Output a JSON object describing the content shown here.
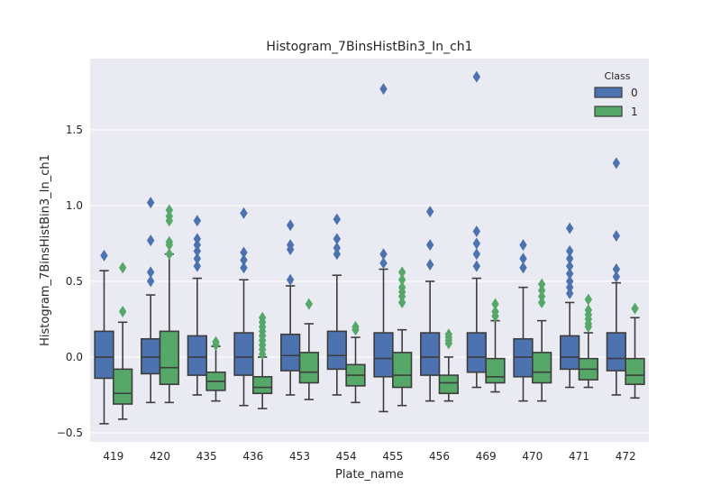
{
  "chart_data": {
    "type": "boxplot",
    "title": "Histogram_7BinsHistBin3_In_ch1",
    "xlabel": "Plate_name",
    "ylabel": "Histogram_7BinsHistBin3_In_ch1",
    "ylim": [
      -0.56,
      1.97
    ],
    "yticks": [
      -0.5,
      0.0,
      0.5,
      1.0,
      1.5
    ],
    "ytick_labels": [
      "−0.5",
      "0.0",
      "0.5",
      "1.0",
      "1.5"
    ],
    "grid": true,
    "legend": {
      "title": "Class",
      "position": "top-right",
      "entries": [
        "0",
        "1"
      ]
    },
    "colors": {
      "0": "#4c72b0",
      "1": "#55a868",
      "background": "#eaeaf2",
      "grid": "#ffffff",
      "line": "#3d3d3d"
    },
    "categories": [
      "419",
      "420",
      "435",
      "436",
      "453",
      "454",
      "455",
      "456",
      "469",
      "470",
      "471",
      "472"
    ],
    "series": [
      {
        "name": "0",
        "boxes": [
          {
            "whislo": -0.44,
            "q1": -0.14,
            "med": 0.0,
            "q3": 0.17,
            "whishi": 0.57,
            "fliers": [
              0.67
            ]
          },
          {
            "whislo": -0.3,
            "q1": -0.11,
            "med": 0.0,
            "q3": 0.12,
            "whishi": 0.41,
            "fliers": [
              0.5,
              0.56,
              0.77,
              1.02
            ]
          },
          {
            "whislo": -0.25,
            "q1": -0.12,
            "med": 0.0,
            "q3": 0.14,
            "whishi": 0.52,
            "fliers": [
              0.6,
              0.65,
              0.7,
              0.74,
              0.78,
              0.9
            ]
          },
          {
            "whislo": -0.32,
            "q1": -0.12,
            "med": 0.0,
            "q3": 0.16,
            "whishi": 0.51,
            "fliers": [
              0.59,
              0.64,
              0.69,
              0.95
            ]
          },
          {
            "whislo": -0.25,
            "q1": -0.09,
            "med": 0.01,
            "q3": 0.15,
            "whishi": 0.47,
            "fliers": [
              0.51,
              0.71,
              0.74,
              0.87
            ]
          },
          {
            "whislo": -0.25,
            "q1": -0.08,
            "med": 0.01,
            "q3": 0.17,
            "whishi": 0.54,
            "fliers": [
              0.68,
              0.72,
              0.78,
              0.91
            ]
          },
          {
            "whislo": -0.36,
            "q1": -0.13,
            "med": -0.01,
            "q3": 0.16,
            "whishi": 0.58,
            "fliers": [
              0.62,
              0.68,
              1.77
            ]
          },
          {
            "whislo": -0.29,
            "q1": -0.12,
            "med": 0.0,
            "q3": 0.16,
            "whishi": 0.5,
            "fliers": [
              0.61,
              0.74,
              0.96
            ]
          },
          {
            "whislo": -0.2,
            "q1": -0.1,
            "med": 0.0,
            "q3": 0.16,
            "whishi": 0.52,
            "fliers": [
              0.6,
              0.68,
              0.75,
              0.83,
              1.85
            ]
          },
          {
            "whislo": -0.29,
            "q1": -0.13,
            "med": 0.0,
            "q3": 0.12,
            "whishi": 0.46,
            "fliers": [
              0.59,
              0.65,
              0.74
            ]
          },
          {
            "whislo": -0.2,
            "q1": -0.08,
            "med": 0.0,
            "q3": 0.14,
            "whishi": 0.36,
            "fliers": [
              0.42,
              0.46,
              0.5,
              0.55,
              0.6,
              0.65,
              0.7,
              0.85
            ]
          },
          {
            "whislo": -0.25,
            "q1": -0.09,
            "med": -0.01,
            "q3": 0.16,
            "whishi": 0.49,
            "fliers": [
              0.53,
              0.58,
              0.8,
              1.28
            ]
          }
        ]
      },
      {
        "name": "1",
        "boxes": [
          {
            "whislo": -0.41,
            "q1": -0.31,
            "med": -0.24,
            "q3": -0.08,
            "whishi": 0.23,
            "fliers": [
              0.3,
              0.59
            ]
          },
          {
            "whislo": -0.3,
            "q1": -0.18,
            "med": -0.07,
            "q3": 0.17,
            "whishi": 0.68,
            "fliers": [
              0.68,
              0.74,
              0.76,
              0.9,
              0.93,
              0.97
            ]
          },
          {
            "whislo": -0.29,
            "q1": -0.22,
            "med": -0.16,
            "q3": -0.1,
            "whishi": 0.07,
            "fliers": [
              0.08,
              0.1
            ]
          },
          {
            "whislo": -0.34,
            "q1": -0.24,
            "med": -0.2,
            "q3": -0.13,
            "whishi": 0.0,
            "fliers": [
              0.02,
              0.05,
              0.08,
              0.11,
              0.14,
              0.17,
              0.2,
              0.23,
              0.26
            ]
          },
          {
            "whislo": -0.28,
            "q1": -0.17,
            "med": -0.1,
            "q3": 0.03,
            "whishi": 0.22,
            "fliers": [
              0.35
            ]
          },
          {
            "whislo": -0.3,
            "q1": -0.19,
            "med": -0.12,
            "q3": -0.05,
            "whishi": 0.13,
            "fliers": [
              0.18,
              0.2
            ]
          },
          {
            "whislo": -0.32,
            "q1": -0.2,
            "med": -0.12,
            "q3": 0.03,
            "whishi": 0.18,
            "fliers": [
              0.36,
              0.4,
              0.43,
              0.46,
              0.51,
              0.56
            ]
          },
          {
            "whislo": -0.29,
            "q1": -0.24,
            "med": -0.17,
            "q3": -0.12,
            "whishi": 0.0,
            "fliers": [
              0.09,
              0.11,
              0.13,
              0.15
            ]
          },
          {
            "whislo": -0.23,
            "q1": -0.17,
            "med": -0.13,
            "q3": -0.01,
            "whishi": 0.24,
            "fliers": [
              0.27,
              0.3,
              0.35
            ]
          },
          {
            "whislo": -0.29,
            "q1": -0.17,
            "med": -0.1,
            "q3": 0.03,
            "whishi": 0.24,
            "fliers": [
              0.36,
              0.4,
              0.44,
              0.48
            ]
          },
          {
            "whislo": -0.2,
            "q1": -0.15,
            "med": -0.08,
            "q3": -0.01,
            "whishi": 0.16,
            "fliers": [
              0.2,
              0.22,
              0.25,
              0.28,
              0.31,
              0.38
            ]
          },
          {
            "whislo": -0.27,
            "q1": -0.18,
            "med": -0.12,
            "q3": -0.01,
            "whishi": 0.26,
            "fliers": [
              0.32
            ]
          }
        ]
      }
    ]
  }
}
